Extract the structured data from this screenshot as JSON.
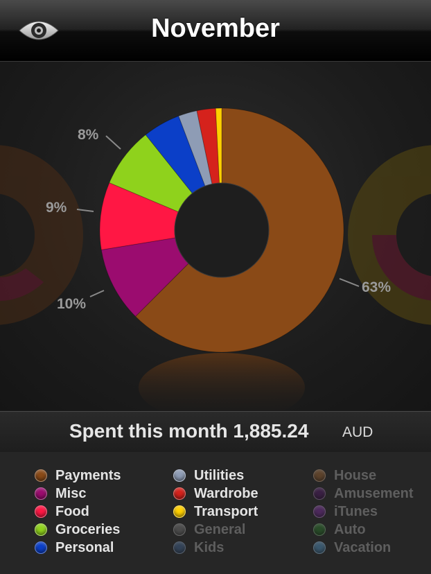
{
  "header": {
    "title": "November",
    "eye_icon": "eye-icon"
  },
  "chart_data": {
    "type": "pie",
    "variant": "donut",
    "slices": [
      {
        "name": "Payments",
        "value": 63,
        "color": "#8a4a17"
      },
      {
        "name": "Misc",
        "value": 10,
        "color": "#9b0c6f"
      },
      {
        "name": "Food",
        "value": 9,
        "color": "#ff1744"
      },
      {
        "name": "Groceries",
        "value": 8,
        "color": "#8fd21c"
      },
      {
        "name": "Personal",
        "value": 5,
        "color": "#0b3fc8"
      },
      {
        "name": "Utilities",
        "value": 2.5,
        "color": "#8e9cb5"
      },
      {
        "name": "Wardrobe",
        "value": 2.5,
        "color": "#d5221c"
      },
      {
        "name": "Transport",
        "value": 0.8,
        "color": "#ffd000"
      }
    ],
    "labels": [
      "63%",
      "10%",
      "9%",
      "8%"
    ]
  },
  "summary": {
    "spent_text": "Spent this month 1,885.24",
    "currency": "AUD"
  },
  "legend": {
    "columns": [
      [
        {
          "label": "Payments",
          "color": "#8a4a17",
          "active": true
        },
        {
          "label": "Misc",
          "color": "#9b0c6f",
          "active": true
        },
        {
          "label": "Food",
          "color": "#ff1744",
          "active": true
        },
        {
          "label": "Groceries",
          "color": "#8fd21c",
          "active": true
        },
        {
          "label": "Personal",
          "color": "#0b3fc8",
          "active": true
        }
      ],
      [
        {
          "label": "Utilities",
          "color": "#8e9cb5",
          "active": true
        },
        {
          "label": "Wardrobe",
          "color": "#d5221c",
          "active": true
        },
        {
          "label": "Transport",
          "color": "#ffd000",
          "active": true
        },
        {
          "label": "General",
          "color": "#6b6b6b",
          "active": false
        },
        {
          "label": "Kids",
          "color": "#3d5a80",
          "active": false
        }
      ],
      [
        {
          "label": "House",
          "color": "#8a5a30",
          "active": false
        },
        {
          "label": "Amusement",
          "color": "#4a1b5c",
          "active": false
        },
        {
          "label": "iTunes",
          "color": "#6d2c8a",
          "active": false
        },
        {
          "label": "Auto",
          "color": "#2b6b2b",
          "active": false
        },
        {
          "label": "Vacation",
          "color": "#4a80a8",
          "active": false
        }
      ]
    ]
  }
}
